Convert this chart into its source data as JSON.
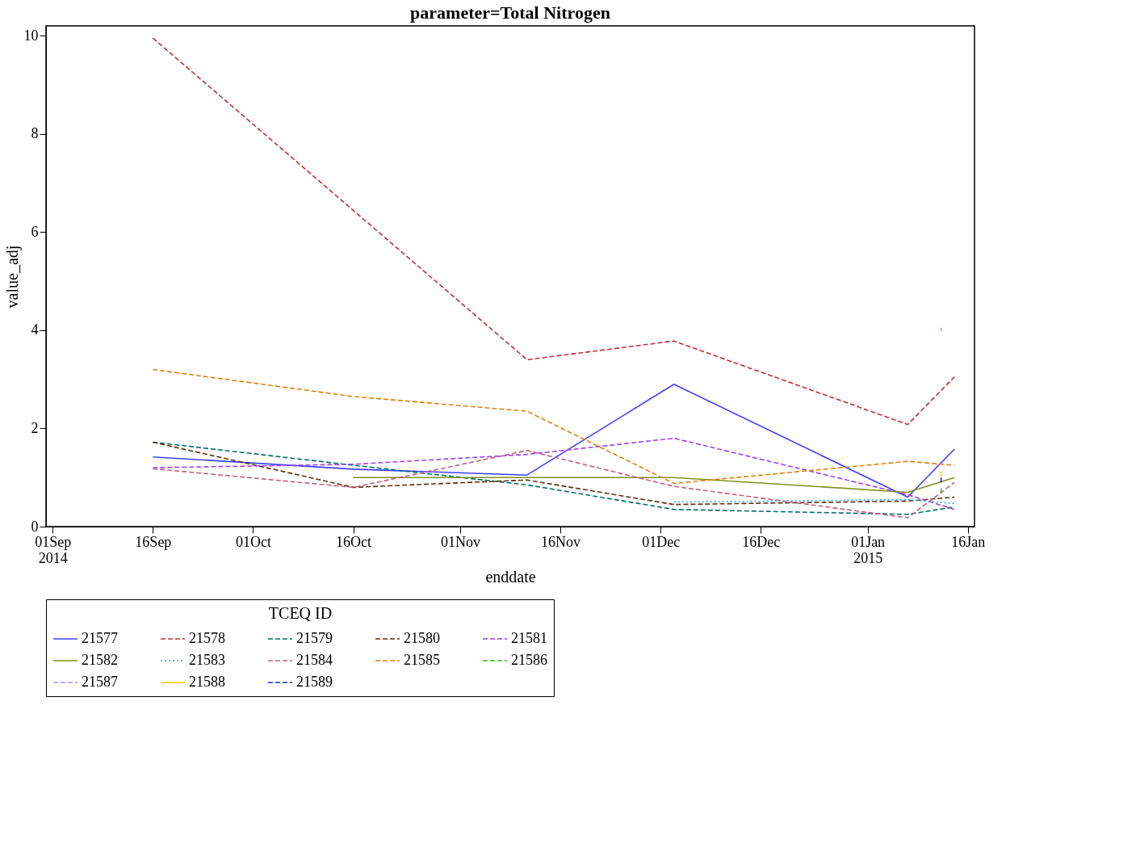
{
  "chart_data": {
    "type": "line",
    "title": "parameter=Total Nitrogen",
    "xlabel": "enddate",
    "ylabel": "value_adj",
    "legend_title": "TCEQ ID",
    "xlim": [
      "2014-08-31",
      "2015-01-17"
    ],
    "xticks": [
      {
        "value": "2014-09-01",
        "label": "01Sep\n2014"
      },
      {
        "value": "2014-09-16",
        "label": "16Sep"
      },
      {
        "value": "2014-10-01",
        "label": "01Oct"
      },
      {
        "value": "2014-10-16",
        "label": "16Oct"
      },
      {
        "value": "2014-11-01",
        "label": "01Nov"
      },
      {
        "value": "2014-11-16",
        "label": "16Nov"
      },
      {
        "value": "2014-12-01",
        "label": "01Dec"
      },
      {
        "value": "2014-12-16",
        "label": "16Dec"
      },
      {
        "value": "2015-01-01",
        "label": "01Jan\n2015"
      },
      {
        "value": "2015-01-16",
        "label": "16Jan"
      }
    ],
    "ylim": [
      0,
      10.2
    ],
    "yticks": [
      0,
      2,
      4,
      6,
      8,
      10
    ],
    "grid": false,
    "legend": "bottom",
    "marker": "none",
    "series": [
      {
        "name": "21577",
        "color": "#4040ff",
        "line_style": "solid",
        "x": [
          "2014-09-16",
          "2014-10-16",
          "2014-11-11",
          "2014-12-03",
          "2015-01-07",
          "2015-01-14"
        ],
        "values": [
          1.42,
          1.17,
          1.05,
          2.9,
          0.6,
          1.58
        ]
      },
      {
        "name": "21578",
        "color": "#c0303a",
        "line_style": "dashed",
        "x": [
          "2014-09-16",
          "2014-11-11",
          "2014-12-03",
          "2015-01-07",
          "2015-01-14"
        ],
        "values": [
          9.95,
          3.4,
          3.78,
          2.08,
          3.05
        ]
      },
      {
        "name": "21579",
        "color": "#007060",
        "line_style": "dashed",
        "x": [
          "2014-09-16",
          "2014-10-16",
          "2014-11-11",
          "2014-12-03",
          "2015-01-07",
          "2015-01-14"
        ],
        "values": [
          1.72,
          1.25,
          0.85,
          0.35,
          0.25,
          0.4
        ]
      },
      {
        "name": "21580",
        "color": "#603010",
        "line_style": "dashed",
        "x": [
          "2014-09-16",
          "2014-10-16",
          "2014-11-11",
          "2014-12-03",
          "2015-01-07",
          "2015-01-14"
        ],
        "values": [
          1.72,
          0.8,
          0.95,
          0.45,
          0.52,
          0.6
        ]
      },
      {
        "name": "21581",
        "color": "#a040f0",
        "line_style": "dashed",
        "x": [
          "2014-09-16",
          "2014-10-16",
          "2014-11-11",
          "2014-12-03",
          "2015-01-07",
          "2015-01-14"
        ],
        "values": [
          1.2,
          1.27,
          1.47,
          1.8,
          0.65,
          0.35
        ]
      },
      {
        "name": "21582",
        "color": "#809020",
        "line_style": "solid",
        "x": [
          "2014-10-16",
          "2014-11-11",
          "2014-12-03",
          "2015-01-07",
          "2015-01-14"
        ],
        "values": [
          1.0,
          1.0,
          1.0,
          0.7,
          1.0
        ]
      },
      {
        "name": "21583",
        "color": "#30a0ff",
        "line_style": "dotted",
        "x": [
          "2014-12-03",
          "2015-01-07",
          "2015-01-14"
        ],
        "values": [
          0.5,
          0.55,
          0.47
        ]
      },
      {
        "name": "21584",
        "color": "#c06080",
        "line_style": "dashed",
        "x": [
          "2014-09-16",
          "2014-10-16",
          "2014-11-11",
          "2014-12-03",
          "2015-01-07",
          "2015-01-14"
        ],
        "values": [
          1.18,
          0.8,
          1.55,
          0.82,
          0.18,
          0.9
        ]
      },
      {
        "name": "21585",
        "color": "#e08010",
        "line_style": "dashed",
        "x": [
          "2014-09-16",
          "2014-10-16",
          "2014-11-11",
          "2014-12-03",
          "2015-01-07",
          "2015-01-14"
        ],
        "values": [
          3.2,
          2.65,
          2.35,
          0.88,
          1.33,
          1.25
        ]
      },
      {
        "name": "21586",
        "color": "#40b030",
        "line_style": "dashed",
        "x": [
          "2015-01-12",
          "2015-01-12"
        ],
        "values": [
          0.78,
          0.68
        ]
      },
      {
        "name": "21587",
        "color": "#b090f0",
        "line_style": "dashed",
        "x": [
          "2015-01-12",
          "2015-01-12"
        ],
        "values": [
          4.05,
          3.98
        ]
      },
      {
        "name": "21588",
        "color": "#f0d000",
        "line_style": "solid",
        "x": [
          "2015-01-12",
          "2015-01-12"
        ],
        "values": [
          1.12,
          1.02
        ]
      },
      {
        "name": "21589",
        "color": "#2020e0",
        "line_style": "dashed",
        "x": [
          "2015-01-12",
          "2015-01-12"
        ],
        "values": [
          1.0,
          0.9
        ]
      }
    ]
  }
}
